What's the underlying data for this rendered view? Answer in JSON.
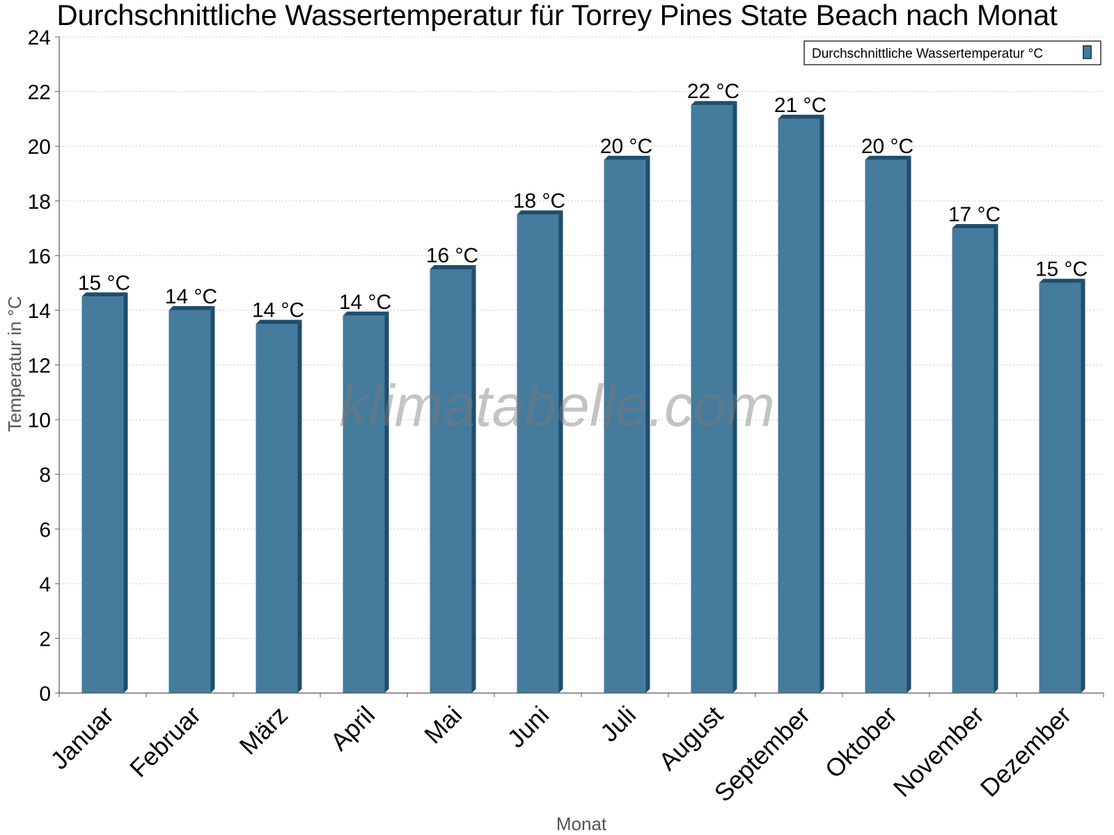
{
  "chart_data": {
    "type": "bar",
    "title": "Durchschnittliche Wassertemperatur für Torrey Pines State Beach nach Monat",
    "xlabel": "Monat",
    "ylabel": "Temperatur in °C",
    "ylim": [
      0,
      24
    ],
    "yticks": [
      0,
      2,
      4,
      6,
      8,
      10,
      12,
      14,
      16,
      18,
      20,
      22,
      24
    ],
    "grid": true,
    "legend_position": "top-right",
    "categories": [
      "Januar",
      "Februar",
      "März",
      "April",
      "Mai",
      "Juni",
      "Juli",
      "August",
      "September",
      "Oktober",
      "November",
      "Dezember"
    ],
    "series": [
      {
        "name": "Durchschnittliche Wassertemperatur °C",
        "values": [
          14.5,
          14.0,
          13.5,
          13.8,
          15.5,
          17.5,
          19.5,
          21.5,
          21.0,
          19.5,
          17.0,
          15.0
        ],
        "data_labels": [
          "15 °C",
          "14 °C",
          "14 °C",
          "14 °C",
          "16 °C",
          "18 °C",
          "20 °C",
          "22 °C",
          "21 °C",
          "20 °C",
          "17 °C",
          "15 °C"
        ],
        "color": "#457b9d",
        "edge_color": "#1d4e6e"
      }
    ],
    "watermark": "klimatabelle.com"
  }
}
